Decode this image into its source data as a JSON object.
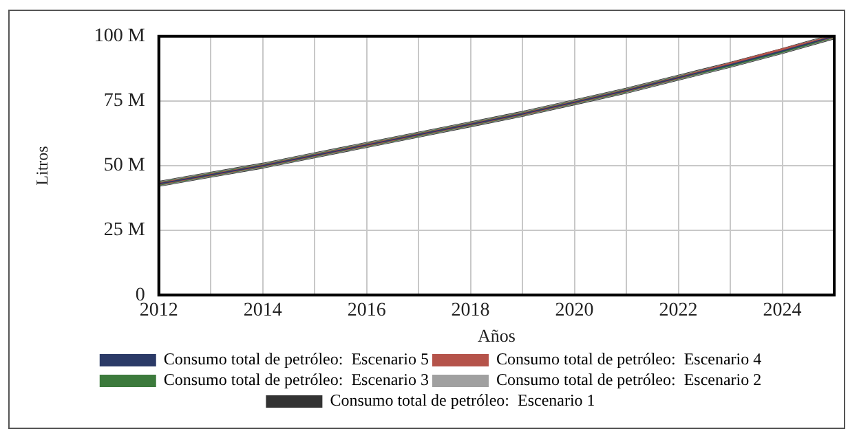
{
  "chart_data": {
    "type": "line",
    "xlabel": "Años",
    "ylabel": "Litros",
    "x": [
      2012,
      2013,
      2014,
      2015,
      2016,
      2017,
      2018,
      2019,
      2020,
      2021,
      2022,
      2023,
      2024,
      2025
    ],
    "series": [
      {
        "name": "Consumo total de petróleo:  Escenario 5",
        "color": "#2b3a67",
        "values": [
          43,
          46.5,
          50,
          54,
          58,
          62,
          66,
          70,
          74.5,
          79,
          84,
          89,
          94.3,
          100
        ]
      },
      {
        "name": "Consumo total de petróleo:  Escenario 4",
        "color": "#b5534a",
        "values": [
          43,
          46.5,
          50,
          54,
          58,
          62,
          66,
          70,
          74.5,
          79,
          84,
          89.4,
          94.9,
          100
        ]
      },
      {
        "name": "Consumo total de petróleo:  Escenario 3",
        "color": "#3c7a3c",
        "values": [
          43,
          46.5,
          50,
          54,
          58,
          62,
          66,
          70,
          74.5,
          79,
          84,
          89,
          94.3,
          100
        ]
      },
      {
        "name": "Consumo total de petróleo:  Escenario 2",
        "color": "#a0a0a0",
        "values": [
          43,
          46.5,
          50,
          54,
          58,
          62,
          66,
          70,
          74.5,
          79,
          84,
          89,
          94.3,
          100
        ]
      },
      {
        "name": "Consumo total de petróleo:  Escenario 1",
        "color": "#333333",
        "values": [
          43,
          46.5,
          50,
          54,
          58,
          62,
          66,
          70,
          74.5,
          79,
          84,
          89,
          94.3,
          100
        ]
      }
    ],
    "xlim": [
      2012,
      2025
    ],
    "xticks": [
      2012,
      {
        "value": 2013,
        "label": null
      },
      2014,
      {
        "value": 2015,
        "label": null
      },
      2016,
      {
        "value": 2017,
        "label": null
      },
      2018,
      {
        "value": 2019,
        "label": null
      },
      2020,
      {
        "value": 2021,
        "label": null
      },
      2022,
      {
        "value": 2023,
        "label": null
      },
      2024,
      {
        "value": 2025,
        "label": null
      }
    ],
    "ylim": [
      0,
      100
    ],
    "yticks": [
      0,
      {
        "value": 25,
        "label": "25 M"
      },
      {
        "value": 50,
        "label": "50 M"
      },
      {
        "value": 75,
        "label": "75 M"
      },
      {
        "value": 100,
        "label": "100 M"
      }
    ],
    "grid": true,
    "legend": "bottom",
    "marker": "none",
    "line_style": "solid"
  }
}
